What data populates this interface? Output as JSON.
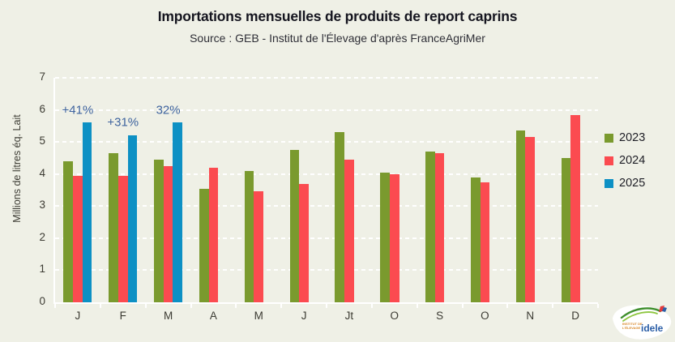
{
  "header": {
    "title": "Importations mensuelles de produits de report caprins",
    "subtitle": "Source : GEB - Institut de l'Élevage d'après FranceAgriMer"
  },
  "chart_data": {
    "type": "bar",
    "categories": [
      "J",
      "F",
      "M",
      "A",
      "M",
      "J",
      "Jt",
      "O",
      "S",
      "O",
      "N",
      "D"
    ],
    "series": [
      {
        "name": "2023",
        "color": "#7a9a2e",
        "values": [
          4.4,
          4.65,
          4.45,
          3.55,
          4.1,
          4.75,
          5.3,
          4.05,
          4.7,
          3.9,
          5.35,
          4.5
        ]
      },
      {
        "name": "2024",
        "color": "#fb4b50",
        "values": [
          3.95,
          3.95,
          4.25,
          4.2,
          3.45,
          3.7,
          4.45,
          4.0,
          4.65,
          3.75,
          5.15,
          5.85
        ]
      },
      {
        "name": "2025",
        "color": "#0d90c4",
        "values": [
          5.6,
          5.2,
          5.6,
          null,
          null,
          null,
          null,
          null,
          null,
          null,
          null,
          null
        ]
      }
    ],
    "ylabel": "Millions de litres éq. Lait",
    "xlabel": "",
    "ylim": [
      0,
      7
    ],
    "yticks": [
      0,
      1,
      2,
      3,
      4,
      5,
      6,
      7
    ],
    "grid": "horizontal-dashed-white",
    "legend_position": "right",
    "annotations": [
      {
        "text": "+41%",
        "month_index": 0,
        "y": 6.0
      },
      {
        "text": "+31%",
        "month_index": 1,
        "y": 5.6
      },
      {
        "text": "32%",
        "month_index": 2,
        "y": 6.0
      }
    ],
    "annotation_color": "#3e639e"
  },
  "colors": {
    "background": "#eff0e6",
    "axis": "#ffffff",
    "tick_text": "#3c3b33"
  },
  "logo": {
    "name": "idele-logo",
    "text_small_line1": "INSTITUT DE",
    "text_small_line2": "L'ÉLEVAGE",
    "text_main": "idele"
  }
}
